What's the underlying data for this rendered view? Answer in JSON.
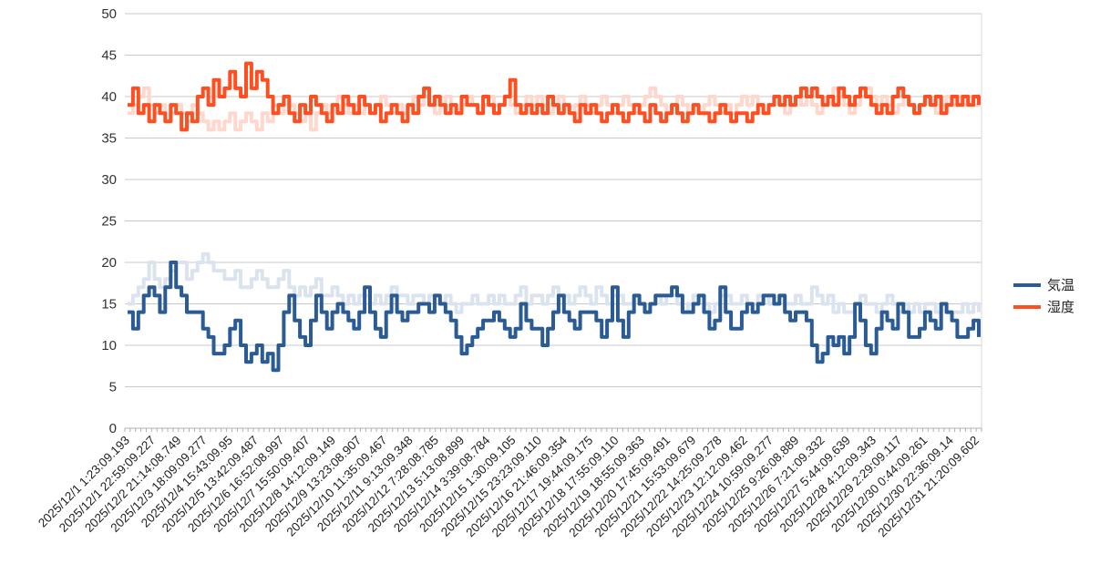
{
  "chart_data": {
    "type": "line",
    "ylim": [
      0,
      50
    ],
    "yticks": [
      0,
      5,
      10,
      15,
      20,
      25,
      30,
      35,
      40,
      45,
      50
    ],
    "grid": "horizontal",
    "legend": "right",
    "x_labels": [
      "2025/12/1 1:23:09.193",
      "2025/12/1 22:59:09.227",
      "2025/12/2 21:14:08.749",
      "2025/12/3 18:09:09.277",
      "2025/12/4 15:43:09.95",
      "2025/12/5 13:42:09.487",
      "2025/12/6 16:52:08.997",
      "2025/12/7 15:50:09.407",
      "2025/12/8 14:12:09.149",
      "2025/12/9 13:23:08.907",
      "2025/12/10 11:35:09.467",
      "2025/12/11 9:13:09.348",
      "2025/12/12 7:28:08.785",
      "2025/12/13 5:13:08.899",
      "2025/12/14 3:39:08.784",
      "2025/12/15 1:30:09.105",
      "2025/12/15 23:23:09.110",
      "2025/12/16 21:46:09.354",
      "2025/12/17 19:44:09.175",
      "2025/12/18 17:55:09.110",
      "2025/12/19 18:55:09.363",
      "2025/12/20 17:45:09.491",
      "2025/12/21 15:53:09.679",
      "2025/12/22 14:25:09.278",
      "2025/12/23 12:12:09.462",
      "2025/12/24 10:59:09.277",
      "2025/12/25 9:26:08.889",
      "2025/12/26 7:21:09.332",
      "2025/12/27 5:44:09.639",
      "2025/12/28 4:12:09.343",
      "2025/12/29 2:29:09.117",
      "2025/12/30 0:44:09.261",
      "2025/12/30 22:36:09.14",
      "2025/12/31 21:20:09.602"
    ],
    "series": [
      {
        "name": "気温",
        "color": "#2a5b94",
        "ghost_color": "#dbe4ee",
        "values": [
          14,
          12,
          14,
          16,
          17,
          16,
          14,
          17,
          20,
          17,
          16,
          14,
          14,
          14,
          12,
          11,
          9,
          9,
          10,
          12,
          13,
          10,
          8,
          9,
          10,
          8,
          9,
          7,
          10,
          14,
          16,
          13,
          11,
          10,
          13,
          16,
          14,
          12,
          14,
          15,
          14,
          13,
          12,
          14,
          17,
          14,
          12,
          11,
          14,
          16,
          14,
          13,
          14,
          14,
          15,
          15,
          14,
          16,
          15,
          14,
          13,
          11,
          9,
          10,
          11,
          12,
          13,
          13,
          14,
          13,
          12,
          11,
          12,
          15,
          13,
          12,
          12,
          10,
          12,
          14,
          16,
          14,
          13,
          12,
          14,
          14,
          14,
          13,
          11,
          13,
          17,
          13,
          11,
          14,
          16,
          15,
          14,
          15,
          16,
          16,
          16,
          17,
          16,
          14,
          14,
          15,
          16,
          14,
          12,
          13,
          17,
          14,
          12,
          12,
          14,
          15,
          14,
          15,
          16,
          16,
          15,
          16,
          14,
          13,
          14,
          14,
          13,
          10,
          8,
          9,
          11,
          10,
          11,
          9,
          11,
          15,
          13,
          10,
          9,
          12,
          14,
          13,
          12,
          15,
          14,
          11,
          11,
          12,
          14,
          13,
          12,
          15,
          14,
          13,
          11,
          11,
          12,
          13,
          11
        ],
        "ghost_values": [
          15,
          16,
          17,
          18,
          20,
          18,
          17,
          18,
          19,
          20,
          20,
          18,
          19,
          20,
          21,
          20,
          19,
          19,
          18,
          18,
          19,
          17,
          17,
          18,
          19,
          18,
          17,
          17,
          18,
          19,
          17,
          16,
          17,
          16,
          17,
          18,
          16,
          16,
          17,
          16,
          15,
          16,
          15,
          16,
          16,
          15,
          16,
          15,
          16,
          17,
          16,
          16,
          15,
          16,
          16,
          15,
          16,
          16,
          15,
          16,
          15,
          14,
          15,
          15,
          16,
          15,
          15,
          16,
          15,
          16,
          15,
          15,
          16,
          17,
          15,
          16,
          16,
          15,
          16,
          17,
          16,
          16,
          15,
          16,
          17,
          16,
          15,
          17,
          16,
          15,
          16,
          16,
          15,
          15,
          16,
          15,
          14,
          15,
          16,
          15,
          16,
          16,
          15,
          14,
          15,
          16,
          16,
          15,
          14,
          15,
          16,
          16,
          15,
          15,
          16,
          15,
          15,
          16,
          16,
          15,
          15,
          16,
          15,
          15,
          16,
          15,
          15,
          17,
          16,
          15,
          16,
          14,
          15,
          14,
          14,
          15,
          16,
          15,
          15,
          14,
          15,
          16,
          15,
          14,
          15,
          14,
          15,
          14,
          15,
          15,
          14,
          15,
          14,
          14,
          14,
          15,
          14,
          15,
          14
        ]
      },
      {
        "name": "湿度",
        "color": "#ff4e1f",
        "ghost_color": "#ffd7cc",
        "values": [
          39,
          41,
          38,
          39,
          37,
          39,
          38,
          37,
          39,
          38,
          36,
          38,
          37,
          40,
          41,
          39,
          42,
          40,
          41,
          43,
          41,
          40,
          44,
          41,
          43,
          42,
          40,
          38,
          39,
          40,
          38,
          37,
          39,
          38,
          40,
          39,
          38,
          37,
          39,
          38,
          40,
          39,
          38,
          40,
          39,
          38,
          39,
          37,
          38,
          39,
          38,
          37,
          39,
          38,
          40,
          41,
          39,
          40,
          39,
          38,
          39,
          38,
          40,
          39,
          39,
          38,
          40,
          39,
          38,
          39,
          40,
          42,
          39,
          38,
          39,
          38,
          39,
          38,
          40,
          39,
          38,
          39,
          38,
          37,
          39,
          38,
          39,
          38,
          37,
          38,
          39,
          38,
          37,
          38,
          39,
          38,
          37,
          39,
          38,
          37,
          38,
          39,
          38,
          37,
          38,
          39,
          38,
          38,
          37,
          38,
          39,
          38,
          37,
          38,
          38,
          37,
          38,
          39,
          38,
          39,
          40,
          39,
          40,
          39,
          40,
          41,
          40,
          41,
          40,
          39,
          40,
          39,
          41,
          40,
          39,
          40,
          41,
          40,
          39,
          38,
          39,
          38,
          40,
          41,
          40,
          39,
          38,
          39,
          40,
          39,
          40,
          38,
          39,
          40,
          39,
          40,
          39,
          40,
          39
        ],
        "ghost_values": [
          38,
          39,
          40,
          41,
          39,
          38,
          39,
          37,
          38,
          39,
          38,
          37,
          39,
          38,
          37,
          36,
          37,
          36,
          37,
          38,
          36,
          37,
          38,
          37,
          36,
          38,
          37,
          39,
          38,
          40,
          39,
          38,
          37,
          38,
          36,
          38,
          39,
          38,
          39,
          40,
          39,
          38,
          39,
          38,
          39,
          38,
          39,
          40,
          39,
          38,
          39,
          38,
          39,
          40,
          39,
          40,
          39,
          38,
          39,
          40,
          39,
          38,
          39,
          40,
          39,
          38,
          39,
          40,
          39,
          39,
          40,
          39,
          38,
          39,
          40,
          39,
          40,
          39,
          38,
          39,
          40,
          39,
          38,
          39,
          40,
          39,
          38,
          39,
          40,
          39,
          38,
          39,
          40,
          39,
          38,
          39,
          40,
          41,
          40,
          39,
          38,
          39,
          40,
          39,
          38,
          39,
          38,
          39,
          40,
          39,
          38,
          39,
          38,
          39,
          40,
          39,
          40,
          39,
          38,
          39,
          40,
          39,
          38,
          39,
          40,
          39,
          40,
          39,
          38,
          39,
          40,
          41,
          40,
          39,
          38,
          39,
          40,
          41,
          40,
          39,
          40,
          39,
          38,
          39,
          40,
          39,
          38,
          39,
          40,
          39,
          38,
          39,
          40,
          39,
          40,
          39,
          40,
          39,
          40
        ]
      }
    ]
  }
}
